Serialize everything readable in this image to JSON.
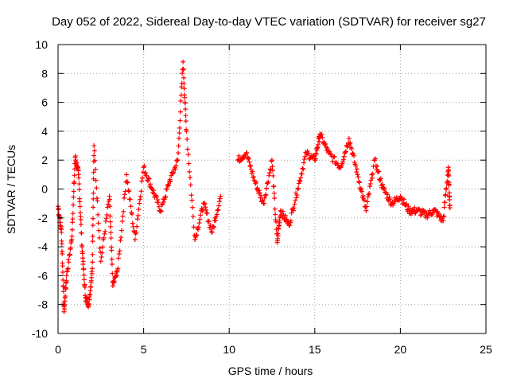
{
  "chart_data": {
    "type": "scatter",
    "title": "Day 052 of 2022, Sidereal Day-to-day VTEC variation (SDTVAR) for receiver sg27",
    "xlabel": "GPS time / hours",
    "ylabel": "SDTVAR / TECUs",
    "xlim": [
      0,
      25
    ],
    "ylim": [
      -10,
      10
    ],
    "x_ticks": [
      0,
      5,
      10,
      15,
      20,
      25
    ],
    "y_ticks": [
      -10,
      -8,
      -6,
      -4,
      -2,
      0,
      2,
      4,
      6,
      8,
      10
    ],
    "grid": true,
    "marker": "+",
    "series_color": "#ff0000",
    "series": [
      {
        "name": "SDTVAR",
        "description": "many overlapping satellite arcs plotted as plus markers",
        "anchor_points": [
          {
            "x": 0.0,
            "y": -1.2
          },
          {
            "x": 0.2,
            "y": -3.0
          },
          {
            "x": 0.35,
            "y": -8.5
          },
          {
            "x": 0.5,
            "y": -6.0
          },
          {
            "x": 0.8,
            "y": -3.5
          },
          {
            "x": 1.0,
            "y": 2.2
          },
          {
            "x": 1.2,
            "y": 1.0
          },
          {
            "x": 1.4,
            "y": -4.0
          },
          {
            "x": 1.6,
            "y": -7.5
          },
          {
            "x": 1.8,
            "y": -8.0
          },
          {
            "x": 2.0,
            "y": -5.5
          },
          {
            "x": 2.1,
            "y": 3.0
          },
          {
            "x": 2.5,
            "y": -5.0
          },
          {
            "x": 3.0,
            "y": -0.5
          },
          {
            "x": 3.2,
            "y": -6.7
          },
          {
            "x": 3.5,
            "y": -5.5
          },
          {
            "x": 4.0,
            "y": 1.0
          },
          {
            "x": 4.5,
            "y": -3.5
          },
          {
            "x": 5.0,
            "y": 1.5
          },
          {
            "x": 5.5,
            "y": 0.0
          },
          {
            "x": 6.0,
            "y": -1.5
          },
          {
            "x": 6.5,
            "y": 0.5
          },
          {
            "x": 7.0,
            "y": 2.0
          },
          {
            "x": 7.3,
            "y": 8.8
          },
          {
            "x": 7.5,
            "y": 4.0
          },
          {
            "x": 8.0,
            "y": -3.5
          },
          {
            "x": 8.5,
            "y": -1.0
          },
          {
            "x": 9.0,
            "y": -3.0
          },
          {
            "x": 9.5,
            "y": -0.5
          },
          {
            "x": 10.5,
            "y": 2.0
          },
          {
            "x": 11.0,
            "y": 2.5
          },
          {
            "x": 11.5,
            "y": 0.5
          },
          {
            "x": 12.0,
            "y": -1.0
          },
          {
            "x": 12.5,
            "y": 2.0
          },
          {
            "x": 12.8,
            "y": -3.7
          },
          {
            "x": 13.0,
            "y": -1.5
          },
          {
            "x": 13.5,
            "y": -2.5
          },
          {
            "x": 14.0,
            "y": 0.0
          },
          {
            "x": 14.5,
            "y": 2.5
          },
          {
            "x": 15.0,
            "y": 2.0
          },
          {
            "x": 15.3,
            "y": 3.8
          },
          {
            "x": 15.8,
            "y": 2.5
          },
          {
            "x": 16.5,
            "y": 1.5
          },
          {
            "x": 17.0,
            "y": 3.5
          },
          {
            "x": 17.5,
            "y": 1.0
          },
          {
            "x": 18.0,
            "y": -1.5
          },
          {
            "x": 18.5,
            "y": 2.0
          },
          {
            "x": 19.0,
            "y": 0.0
          },
          {
            "x": 19.5,
            "y": -1.0
          },
          {
            "x": 20.0,
            "y": -0.5
          },
          {
            "x": 20.5,
            "y": -1.5
          },
          {
            "x": 21.0,
            "y": -1.5
          },
          {
            "x": 21.5,
            "y": -1.8
          },
          {
            "x": 22.0,
            "y": -1.5
          },
          {
            "x": 22.5,
            "y": -2.2
          },
          {
            "x": 22.8,
            "y": 1.5
          },
          {
            "x": 22.9,
            "y": -1.3
          }
        ]
      }
    ]
  }
}
